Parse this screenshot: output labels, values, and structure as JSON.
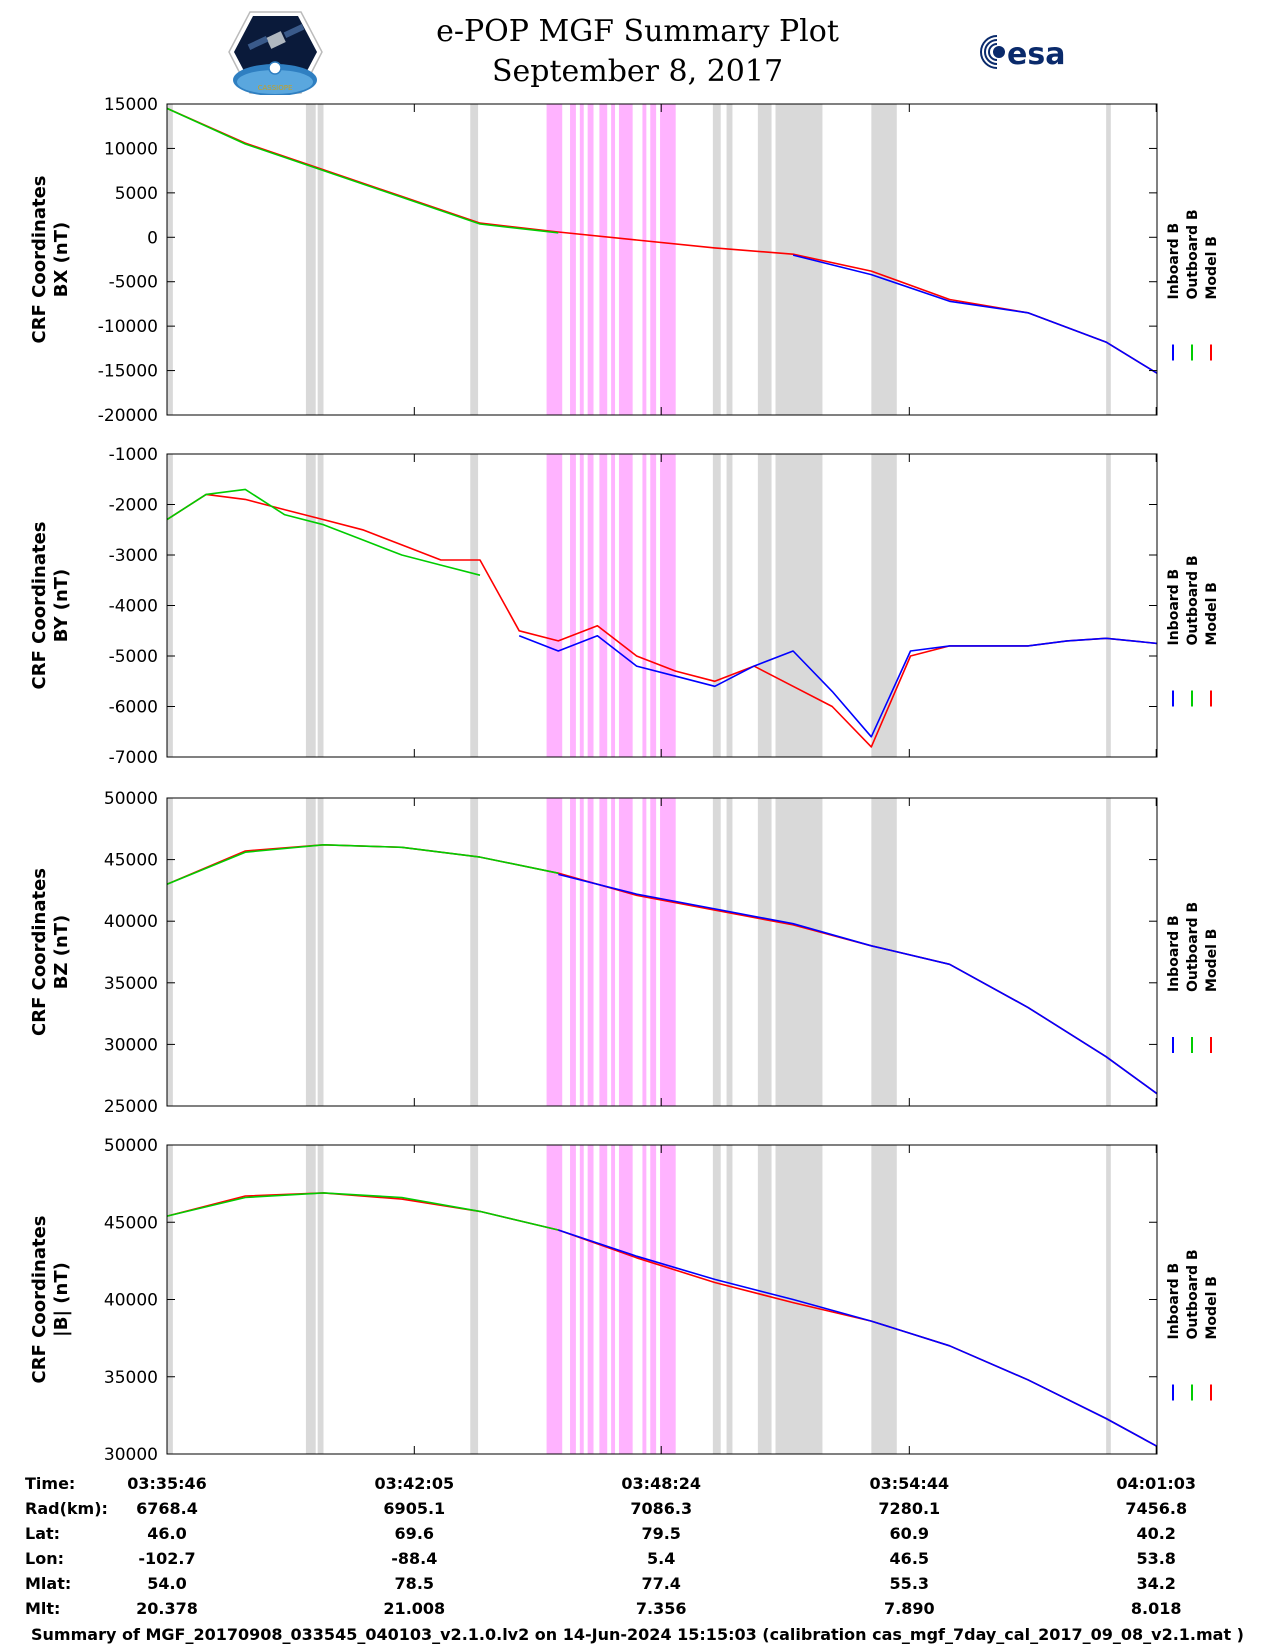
{
  "header": {
    "title_line1": "e-POP MGF Summary Plot",
    "title_line2": "September 8, 2017",
    "logo_left_text": "CASSIOPE",
    "logo_right_text": "esa"
  },
  "colors": {
    "inboard": "#0000ff",
    "outboard": "#00cc00",
    "model": "#ff0000",
    "gray_band": "#d9d9d9",
    "magenta_band": "#ffb3ff"
  },
  "chart_data": [
    {
      "type": "line",
      "id": "bx",
      "ylabel_line1": "CRF Coordinates",
      "ylabel_line2": "BX (nT)",
      "ylim": [
        -20000,
        15000
      ],
      "yticks": [
        15000,
        10000,
        5000,
        0,
        -5000,
        -10000,
        -15000,
        -20000
      ],
      "x": [
        0,
        2,
        4,
        6,
        8,
        10,
        12,
        14,
        16,
        18,
        20,
        22,
        24,
        25.3
      ],
      "series": [
        {
          "name": "Inboard B",
          "values": [
            null,
            null,
            null,
            null,
            null,
            null,
            null,
            null,
            -2000,
            -4200,
            -7200,
            -8500,
            -11800,
            -15300
          ]
        },
        {
          "name": "Outboard B",
          "values": [
            14500,
            10500,
            7500,
            4500,
            1500,
            500,
            null,
            null,
            null,
            null,
            null,
            null,
            null,
            null
          ]
        },
        {
          "name": "Model B",
          "values": [
            14500,
            10600,
            7600,
            4600,
            1600,
            600,
            -300,
            -1200,
            -1900,
            -3800,
            -7000,
            -8500,
            -11800,
            -15300
          ]
        }
      ]
    },
    {
      "type": "line",
      "id": "by",
      "ylabel_line1": "CRF Coordinates",
      "ylabel_line2": "BY (nT)",
      "ylim": [
        -7000,
        -1000
      ],
      "yticks": [
        -1000,
        -2000,
        -3000,
        -4000,
        -5000,
        -6000,
        -7000
      ],
      "x": [
        0,
        1,
        2,
        3,
        4,
        5,
        6,
        7,
        8,
        9,
        10,
        11,
        12,
        13,
        14,
        15,
        16,
        17,
        18,
        19,
        20,
        21,
        22,
        23,
        24,
        25.3
      ],
      "series": [
        {
          "name": "Inboard B",
          "values": [
            null,
            null,
            null,
            null,
            null,
            null,
            null,
            null,
            null,
            -4600,
            -4900,
            -4600,
            -5200,
            -5400,
            -5600,
            -5200,
            -4900,
            -5700,
            -6600,
            -4900,
            -4800,
            -4800,
            -4800,
            -4700,
            -4650,
            -4750
          ]
        },
        {
          "name": "Outboard B",
          "values": [
            -2300,
            -1800,
            -1700,
            -2200,
            -2400,
            -2700,
            -3000,
            -3200,
            -3400,
            null,
            null,
            null,
            null,
            null,
            null,
            null,
            null,
            null,
            null,
            null,
            null,
            null,
            null,
            null,
            null,
            null
          ]
        },
        {
          "name": "Model B",
          "values": [
            -2300,
            -1800,
            -1900,
            -2100,
            -2300,
            -2500,
            -2800,
            -3100,
            -3100,
            -4500,
            -4700,
            -4400,
            -5000,
            -5300,
            -5500,
            -5200,
            -5600,
            -6000,
            -6800,
            -5000,
            -4800,
            -4800,
            -4800,
            -4700,
            -4650,
            -4750
          ]
        }
      ]
    },
    {
      "type": "line",
      "id": "bz",
      "ylabel_line1": "CRF Coordinates",
      "ylabel_line2": "BZ (nT)",
      "ylim": [
        25000,
        50000
      ],
      "yticks": [
        50000,
        45000,
        40000,
        35000,
        30000,
        25000
      ],
      "x": [
        0,
        2,
        4,
        6,
        8,
        10,
        12,
        14,
        16,
        18,
        20,
        22,
        24,
        25.3
      ],
      "series": [
        {
          "name": "Inboard B",
          "values": [
            null,
            null,
            null,
            null,
            null,
            43800,
            42200,
            41000,
            39800,
            38000,
            36500,
            33000,
            29000,
            26000
          ]
        },
        {
          "name": "Outboard B",
          "values": [
            43000,
            45600,
            46200,
            46000,
            45200,
            43900,
            null,
            null,
            null,
            null,
            null,
            null,
            null,
            null
          ]
        },
        {
          "name": "Model B",
          "values": [
            43000,
            45700,
            46200,
            46000,
            45200,
            43900,
            42100,
            40900,
            39700,
            38000,
            36500,
            33000,
            29000,
            26000
          ]
        }
      ]
    },
    {
      "type": "line",
      "id": "bmag",
      "ylabel_line1": "CRF Coordinates",
      "ylabel_line2": "|B| (nT)",
      "ylim": [
        30000,
        50000
      ],
      "yticks": [
        50000,
        45000,
        40000,
        35000,
        30000
      ],
      "x": [
        0,
        2,
        4,
        6,
        8,
        10,
        12,
        14,
        16,
        18,
        20,
        22,
        24,
        25.3
      ],
      "series": [
        {
          "name": "Inboard B",
          "values": [
            null,
            null,
            null,
            null,
            null,
            44500,
            42800,
            41300,
            40000,
            38600,
            37000,
            34800,
            32300,
            30500
          ]
        },
        {
          "name": "Outboard B",
          "values": [
            45400,
            46600,
            46900,
            46600,
            45700,
            44500,
            null,
            null,
            null,
            null,
            null,
            null,
            null,
            null
          ]
        },
        {
          "name": "Model B",
          "values": [
            45400,
            46700,
            46900,
            46500,
            45700,
            44500,
            42700,
            41100,
            39800,
            38600,
            37000,
            34800,
            32300,
            30500
          ]
        }
      ]
    }
  ],
  "x_axis": {
    "range_minutes": [
      0,
      25.3
    ],
    "tick_minutes": [
      0,
      6.32,
      12.63,
      18.97,
      25.28
    ],
    "gray_bands": [
      [
        0,
        0.15
      ],
      [
        3.55,
        3.8
      ],
      [
        3.85,
        4.0
      ],
      [
        7.75,
        7.95
      ],
      [
        13.95,
        14.15
      ],
      [
        14.3,
        14.45
      ],
      [
        15.1,
        15.45
      ],
      [
        15.55,
        16.75
      ],
      [
        18.0,
        18.65
      ],
      [
        24.0,
        24.12
      ]
    ],
    "magenta_bands": [
      [
        9.7,
        10.1
      ],
      [
        10.3,
        10.45
      ],
      [
        10.55,
        10.65
      ],
      [
        10.75,
        10.9
      ],
      [
        11.05,
        11.25
      ],
      [
        11.35,
        11.45
      ],
      [
        11.55,
        11.9
      ],
      [
        12.15,
        12.25
      ],
      [
        12.35,
        12.5
      ],
      [
        12.6,
        13.0
      ]
    ]
  },
  "legend": {
    "labels": [
      "Inboard B",
      "Outboard B",
      "Model B"
    ]
  },
  "ephemeris": {
    "labels": [
      "Time:",
      "Rad(km):",
      "Lat:",
      "Lon:",
      "Mlat:",
      "Mlt:"
    ],
    "columns": [
      [
        "03:35:46",
        "6768.4",
        "46.0",
        "-102.7",
        "54.0",
        "20.378"
      ],
      [
        "03:42:05",
        "6905.1",
        "69.6",
        "-88.4",
        "78.5",
        "21.008"
      ],
      [
        "03:48:24",
        "7086.3",
        "79.5",
        "5.4",
        "77.4",
        "7.356"
      ],
      [
        "03:54:44",
        "7280.1",
        "60.9",
        "46.5",
        "55.3",
        "7.890"
      ],
      [
        "04:01:03",
        "7456.8",
        "40.2",
        "53.8",
        "34.2",
        "8.018"
      ]
    ]
  },
  "footer": {
    "text": "Summary of MGF_20170908_033545_040103_v2.1.0.lv2 on 14-Jun-2024 15:15:03 (calibration cas_mgf_7day_cal_2017_09_08_v2.1.mat )"
  }
}
